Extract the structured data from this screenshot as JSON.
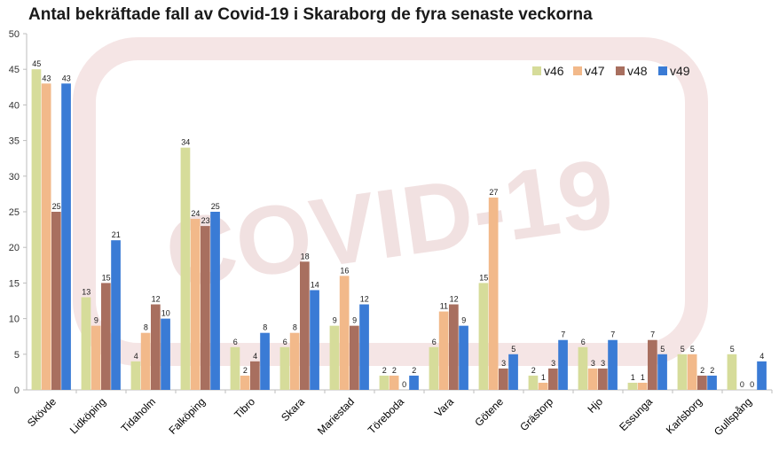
{
  "chart_data": {
    "type": "bar",
    "title": "Antal bekräftade fall av Covid-19 i Skaraborg de fyra senaste veckorna",
    "xlabel": "",
    "ylabel": "",
    "ylim": [
      0,
      50
    ],
    "yticks": [
      0,
      5,
      10,
      15,
      20,
      25,
      30,
      35,
      40,
      45,
      50
    ],
    "grid": false,
    "legend_position": "top-right",
    "categories": [
      "Skövde",
      "Lidköping",
      "Tidaholm",
      "Falköping",
      "Tibro",
      "Skara",
      "Mariestad",
      "Töreboda",
      "Vara",
      "Götene",
      "Grästorp",
      "Hjo",
      "Essunga",
      "Karlsborg",
      "Gullspång"
    ],
    "series": [
      {
        "name": "v46",
        "color": "#d6dc9a",
        "values": [
          45,
          13,
          4,
          34,
          6,
          6,
          9,
          2,
          6,
          15,
          2,
          6,
          1,
          5,
          5
        ]
      },
      {
        "name": "v47",
        "color": "#f2b98a",
        "values": [
          43,
          9,
          8,
          24,
          2,
          8,
          16,
          2,
          11,
          27,
          1,
          3,
          1,
          5,
          0
        ]
      },
      {
        "name": "v48",
        "color": "#a86f5f",
        "values": [
          25,
          15,
          12,
          23,
          4,
          18,
          9,
          0,
          12,
          3,
          3,
          3,
          7,
          2,
          0
        ]
      },
      {
        "name": "v49",
        "color": "#3a7bd5",
        "values": [
          43,
          21,
          10,
          25,
          8,
          14,
          12,
          2,
          9,
          5,
          7,
          7,
          5,
          2,
          4
        ]
      }
    ],
    "watermark": "COVID-19"
  }
}
